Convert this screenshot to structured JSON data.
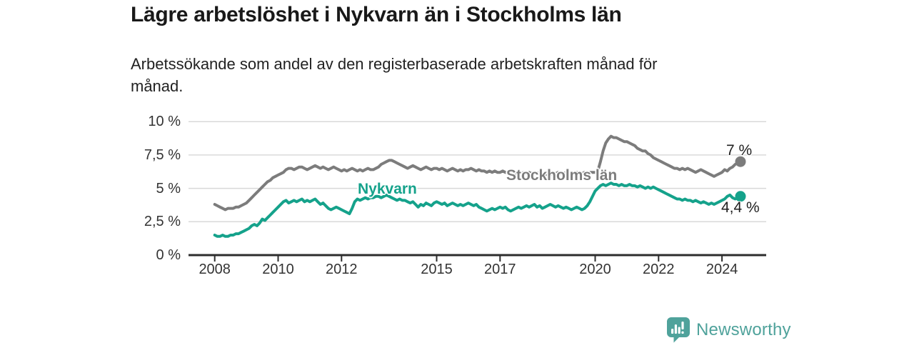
{
  "header": {
    "title": "Lägre arbetslöshet i Nykvarn än i Stockholms län",
    "subtitle": "Arbetssökande som andel av den registerbaserade arbetskraften månad för månad."
  },
  "chart_data": {
    "type": "line",
    "title": "Lägre arbetslöshet i Nykvarn än i Stockholms län",
    "subtitle": "Arbetssökande som andel av den registerbaserade arbetskraften månad för månad.",
    "unit": "%",
    "x_start": "2008-01",
    "x_end": "2024-08",
    "interval": "monthly",
    "grid": "horizontal",
    "legend_position": "inline-labels-on-lines",
    "ylim": [
      0,
      10
    ],
    "y_ticks": [
      {
        "value": 0,
        "label": "0 %"
      },
      {
        "value": 2.5,
        "label": "2,5 %"
      },
      {
        "value": 5,
        "label": "5 %"
      },
      {
        "value": 7.5,
        "label": "7,5 %"
      },
      {
        "value": 10,
        "label": "10 %"
      }
    ],
    "x_ticks": [
      {
        "value": 2008,
        "label": "2008"
      },
      {
        "value": 2010,
        "label": "2010"
      },
      {
        "value": 2012,
        "label": "2012"
      },
      {
        "value": 2015,
        "label": "2015"
      },
      {
        "value": 2017,
        "label": "2017"
      },
      {
        "value": 2020,
        "label": "2020"
      },
      {
        "value": 2022,
        "label": "2022"
      },
      {
        "value": 2024,
        "label": "2024"
      }
    ],
    "series": [
      {
        "id": "stockholms-lan",
        "name": "Stockholms län",
        "color": "#7c7c7c",
        "end_label": "7 %",
        "end_value": 7.0,
        "values": [
          3.8,
          3.7,
          3.6,
          3.5,
          3.4,
          3.5,
          3.5,
          3.5,
          3.6,
          3.6,
          3.7,
          3.8,
          3.9,
          4.1,
          4.3,
          4.5,
          4.7,
          4.9,
          5.1,
          5.3,
          5.5,
          5.6,
          5.8,
          5.9,
          6.0,
          6.1,
          6.2,
          6.4,
          6.5,
          6.5,
          6.4,
          6.5,
          6.6,
          6.6,
          6.5,
          6.4,
          6.5,
          6.6,
          6.7,
          6.6,
          6.5,
          6.6,
          6.5,
          6.4,
          6.5,
          6.6,
          6.5,
          6.4,
          6.3,
          6.4,
          6.3,
          6.4,
          6.5,
          6.4,
          6.3,
          6.4,
          6.3,
          6.4,
          6.5,
          6.4,
          6.4,
          6.5,
          6.6,
          6.8,
          6.9,
          7.0,
          7.1,
          7.1,
          7.0,
          6.9,
          6.8,
          6.7,
          6.6,
          6.5,
          6.6,
          6.7,
          6.6,
          6.5,
          6.4,
          6.5,
          6.6,
          6.5,
          6.4,
          6.5,
          6.5,
          6.4,
          6.5,
          6.4,
          6.3,
          6.4,
          6.5,
          6.4,
          6.3,
          6.4,
          6.3,
          6.4,
          6.4,
          6.5,
          6.4,
          6.3,
          6.4,
          6.3,
          6.3,
          6.2,
          6.3,
          6.2,
          6.3,
          6.2,
          6.2,
          6.3,
          6.2,
          6.2,
          6.1,
          6.2,
          6.1,
          6.2,
          6.1,
          6.2,
          6.1,
          6.2,
          6.1,
          6.2,
          6.1,
          6.2,
          6.1,
          6.0,
          6.1,
          6.0,
          6.1,
          6.1,
          6.2,
          6.1,
          6.1,
          6.2,
          6.1,
          6.2,
          6.1,
          6.2,
          6.1,
          6.1,
          6.2,
          6.1,
          6.2,
          6.2,
          6.2,
          6.3,
          7.0,
          7.8,
          8.4,
          8.7,
          8.9,
          8.8,
          8.8,
          8.7,
          8.6,
          8.5,
          8.5,
          8.4,
          8.3,
          8.2,
          8.0,
          7.9,
          7.8,
          7.8,
          7.6,
          7.5,
          7.3,
          7.2,
          7.1,
          7.0,
          6.9,
          6.8,
          6.7,
          6.6,
          6.5,
          6.5,
          6.4,
          6.5,
          6.4,
          6.5,
          6.4,
          6.3,
          6.2,
          6.3,
          6.4,
          6.3,
          6.2,
          6.1,
          6.0,
          5.9,
          6.0,
          6.1,
          6.2,
          6.4,
          6.3,
          6.5,
          6.6,
          6.8,
          6.9,
          7.0
        ]
      },
      {
        "id": "nykvarn",
        "name": "Nykvarn",
        "color": "#15a28b",
        "end_label": "4,4 %",
        "end_value": 4.4,
        "values": [
          1.5,
          1.4,
          1.4,
          1.5,
          1.4,
          1.4,
          1.5,
          1.5,
          1.6,
          1.6,
          1.7,
          1.8,
          1.9,
          2.0,
          2.2,
          2.3,
          2.2,
          2.4,
          2.7,
          2.6,
          2.8,
          3.0,
          3.2,
          3.4,
          3.6,
          3.8,
          4.0,
          4.1,
          3.9,
          4.0,
          4.1,
          4.0,
          4.1,
          4.2,
          4.0,
          4.1,
          4.0,
          4.1,
          4.2,
          4.0,
          3.8,
          3.9,
          3.7,
          3.5,
          3.4,
          3.5,
          3.6,
          3.5,
          3.4,
          3.3,
          3.2,
          3.1,
          3.5,
          4.0,
          4.2,
          4.1,
          4.2,
          4.3,
          4.2,
          4.3,
          4.3,
          4.4,
          4.4,
          4.3,
          4.4,
          4.5,
          4.4,
          4.3,
          4.2,
          4.1,
          4.2,
          4.1,
          4.1,
          4.0,
          3.9,
          4.0,
          3.8,
          3.6,
          3.8,
          3.7,
          3.9,
          3.8,
          3.7,
          3.9,
          4.0,
          3.9,
          3.8,
          3.9,
          3.7,
          3.8,
          3.9,
          3.8,
          3.7,
          3.8,
          3.7,
          3.8,
          3.9,
          3.8,
          3.7,
          3.8,
          3.6,
          3.5,
          3.4,
          3.3,
          3.4,
          3.5,
          3.4,
          3.5,
          3.6,
          3.5,
          3.6,
          3.4,
          3.3,
          3.4,
          3.5,
          3.6,
          3.5,
          3.6,
          3.7,
          3.6,
          3.7,
          3.8,
          3.6,
          3.7,
          3.5,
          3.6,
          3.7,
          3.8,
          3.7,
          3.6,
          3.7,
          3.6,
          3.5,
          3.6,
          3.5,
          3.4,
          3.5,
          3.6,
          3.5,
          3.4,
          3.5,
          3.7,
          4.0,
          4.4,
          4.8,
          5.0,
          5.2,
          5.3,
          5.2,
          5.3,
          5.4,
          5.3,
          5.3,
          5.2,
          5.3,
          5.2,
          5.2,
          5.3,
          5.2,
          5.2,
          5.1,
          5.2,
          5.1,
          5.0,
          5.1,
          5.0,
          5.1,
          5.0,
          4.9,
          4.8,
          4.7,
          4.6,
          4.5,
          4.4,
          4.3,
          4.2,
          4.2,
          4.1,
          4.2,
          4.1,
          4.1,
          4.0,
          4.1,
          4.0,
          3.9,
          4.0,
          3.9,
          3.8,
          3.9,
          3.8,
          3.9,
          4.0,
          4.1,
          4.2,
          4.4,
          4.5,
          4.3,
          4.2,
          4.3,
          4.4
        ]
      }
    ],
    "style": {
      "grid_color": "#d9d9d9",
      "axis_color": "#2d2d2d",
      "tick_label_color": "#333333"
    }
  },
  "footer": {
    "brand": "Newsworthy",
    "brand_color": "#4fa29b",
    "logo_icon": "newsworthy-speech-bubble-bar-chart"
  }
}
